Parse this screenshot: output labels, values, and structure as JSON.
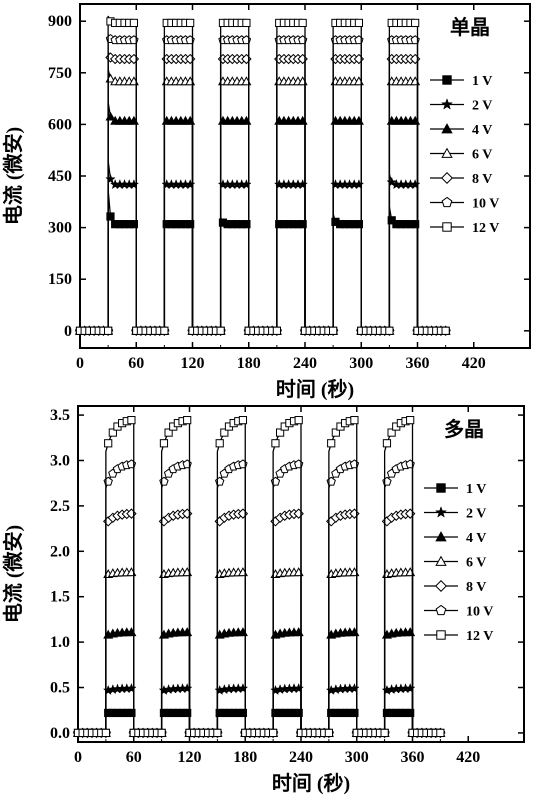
{
  "chart_data": [
    {
      "type": "line",
      "title": "单晶",
      "xlabel": "时间 (秒)",
      "ylabel": "电流 (微安)",
      "xlim": [
        0,
        480
      ],
      "ylim": [
        -50,
        950
      ],
      "xticks": [
        0,
        60,
        120,
        180,
        240,
        300,
        360,
        420
      ],
      "yticks": [
        0,
        150,
        300,
        450,
        600,
        750,
        900
      ],
      "legend_position": "right",
      "on_intervals": [
        [
          30,
          60
        ],
        [
          90,
          120
        ],
        [
          150,
          180
        ],
        [
          210,
          240
        ],
        [
          270,
          300
        ],
        [
          330,
          360
        ]
      ],
      "off_ranges": [
        [
          0,
          30
        ],
        [
          60,
          90
        ],
        [
          120,
          150
        ],
        [
          180,
          210
        ],
        [
          240,
          270
        ],
        [
          300,
          330
        ],
        [
          360,
          390
        ]
      ],
      "series": [
        {
          "name": "1 V",
          "marker": "filled-square",
          "on_value": 310,
          "initial_spike": 410,
          "later_spikes": [
            null,
            null,
            330,
            null,
            340,
            360
          ],
          "off_value": 0
        },
        {
          "name": "2 V",
          "marker": "star",
          "on_value": 425,
          "initial_spike": 495,
          "later_spikes": [
            null,
            null,
            null,
            null,
            null,
            455
          ],
          "off_value": 0
        },
        {
          "name": "4 V",
          "marker": "filled-triangle",
          "on_value": 610,
          "initial_spike": 665,
          "later_spikes": [
            null,
            null,
            null,
            null,
            null,
            null
          ],
          "off_value": 0
        },
        {
          "name": "6 V",
          "marker": "open-triangle",
          "on_value": 725,
          "initial_spike": 760,
          "later_spikes": [
            null,
            null,
            null,
            null,
            null,
            null
          ],
          "off_value": 0
        },
        {
          "name": "8 V",
          "marker": "open-diamond",
          "on_value": 790,
          "initial_spike": 810,
          "later_spikes": [
            null,
            null,
            null,
            null,
            null,
            null
          ],
          "off_value": 0
        },
        {
          "name": "10 V",
          "marker": "open-pentagon",
          "on_value": 845,
          "initial_spike": 860,
          "later_spikes": [
            null,
            null,
            null,
            null,
            null,
            null
          ],
          "off_value": 0
        },
        {
          "name": "12 V",
          "marker": "open-square",
          "on_value": 895,
          "initial_spike": 915,
          "later_spikes": [
            null,
            null,
            null,
            null,
            null,
            895
          ],
          "off_value": 0
        }
      ]
    },
    {
      "type": "line",
      "title": "多晶",
      "xlabel": "时间 (秒)",
      "ylabel": "电流 (微安)",
      "xlim": [
        0,
        480
      ],
      "ylim": [
        -0.1,
        3.6
      ],
      "xticks": [
        0,
        60,
        120,
        180,
        240,
        300,
        360,
        420
      ],
      "yticks": [
        0.0,
        0.5,
        1.0,
        1.5,
        2.0,
        2.5,
        3.0,
        3.5
      ],
      "legend_position": "right",
      "on_intervals": [
        [
          30,
          60
        ],
        [
          90,
          120
        ],
        [
          150,
          180
        ],
        [
          210,
          240
        ],
        [
          270,
          300
        ],
        [
          330,
          360
        ]
      ],
      "off_ranges": [
        [
          0,
          30
        ],
        [
          60,
          90
        ],
        [
          120,
          150
        ],
        [
          180,
          210
        ],
        [
          240,
          270
        ],
        [
          300,
          330
        ],
        [
          360,
          390
        ]
      ],
      "series": [
        {
          "name": "1 V",
          "marker": "filled-square",
          "rise_from": 0.22,
          "on_value": 0.22,
          "off_value": 0
        },
        {
          "name": "2 V",
          "marker": "star",
          "rise_from": 0.46,
          "on_value": 0.49,
          "off_value": 0
        },
        {
          "name": "4 V",
          "marker": "filled-triangle",
          "rise_from": 1.07,
          "on_value": 1.11,
          "off_value": 0
        },
        {
          "name": "6 V",
          "marker": "open-triangle",
          "rise_from": 1.74,
          "on_value": 1.77,
          "off_value": 0
        },
        {
          "name": "8 V",
          "marker": "open-diamond",
          "rise_from": 2.3,
          "on_value": 2.42,
          "off_value": 0
        },
        {
          "name": "10 V",
          "marker": "open-pentagon",
          "rise_from": 2.7,
          "on_value": 2.97,
          "off_value": 0
        },
        {
          "name": "12 V",
          "marker": "open-square",
          "rise_from": 3.1,
          "on_value": 3.46,
          "off_value": 0
        }
      ]
    }
  ]
}
